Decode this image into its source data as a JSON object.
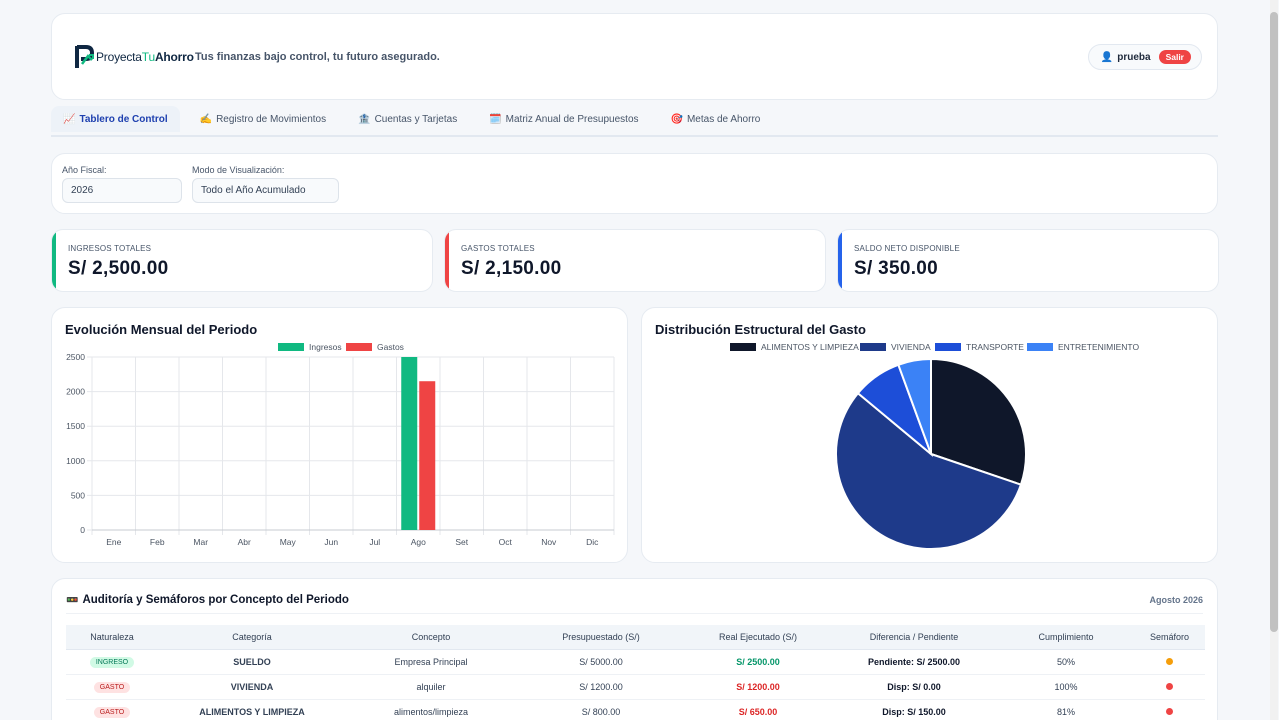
{
  "header": {
    "logo_parts": [
      "Proyecta",
      "Tu",
      "Ahorro"
    ],
    "tagline": "Tus finanzas bajo control, tu futuro asegurado.",
    "user_name": "prueba",
    "logout_label": "Salir"
  },
  "tabs": [
    {
      "icon": "📈",
      "label": "Tablero de Control",
      "active": true
    },
    {
      "icon": "✍️",
      "label": "Registro de Movimientos",
      "active": false
    },
    {
      "icon": "🏦",
      "label": "Cuentas y Tarjetas",
      "active": false
    },
    {
      "icon": "🗓️",
      "label": "Matriz Anual de Presupuestos",
      "active": false
    },
    {
      "icon": "🎯",
      "label": "Metas de Ahorro",
      "active": false
    }
  ],
  "filters": {
    "year_label": "Año Fiscal:",
    "year_value": "2026",
    "mode_label": "Modo de Visualización:",
    "mode_value": "Todo el Año Acumulado"
  },
  "kpis": [
    {
      "label": "INGRESOS TOTALES",
      "value": "S/ 2,500.00",
      "color": "#10b981"
    },
    {
      "label": "GASTOS TOTALES",
      "value": "S/ 2,150.00",
      "color": "#ef4444"
    },
    {
      "label": "SALDO NETO DISPONIBLE",
      "value": "S/ 350.00",
      "color": "#2563eb"
    }
  ],
  "chart_data": [
    {
      "type": "bar",
      "title": "Evolución Mensual del Periodo",
      "categories": [
        "Ene",
        "Feb",
        "Mar",
        "Abr",
        "May",
        "Jun",
        "Jul",
        "Ago",
        "Set",
        "Oct",
        "Nov",
        "Dic"
      ],
      "series": [
        {
          "name": "Ingresos",
          "color": "#10b981",
          "values": [
            0,
            0,
            0,
            0,
            0,
            0,
            0,
            2500,
            0,
            0,
            0,
            0
          ]
        },
        {
          "name": "Gastos",
          "color": "#ef4444",
          "values": [
            0,
            0,
            0,
            0,
            0,
            0,
            0,
            2150,
            0,
            0,
            0,
            0
          ]
        }
      ],
      "ylim": [
        0,
        2500
      ],
      "yticks": [
        0,
        500,
        1000,
        1500,
        2000,
        2500
      ],
      "grid": true,
      "legend": "top-center"
    },
    {
      "type": "pie",
      "title": "Distribución Estructural del Gasto",
      "labels": [
        "ALIMENTOS Y LIMPIEZA",
        "VIVIENDA",
        "TRANSPORTE",
        "ENTRETENIMIENTO"
      ],
      "values": [
        650,
        1200,
        180,
        120
      ],
      "colors": [
        "#0f172a",
        "#1e3a8a",
        "#1d4ed8",
        "#3b82f6"
      ],
      "legend": "top-center"
    }
  ],
  "audit": {
    "title": "Auditoría y Semáforos por Concepto del Periodo",
    "period": "Agosto 2026",
    "columns": [
      "Naturaleza",
      "Categoría",
      "Concepto",
      "Presupuestado (S/)",
      "Real Ejecutado (S/)",
      "Diferencia / Pendiente",
      "Cumplimiento",
      "Semáforo"
    ],
    "rows": [
      {
        "nature": "INGRESO",
        "category": "SUELDO",
        "concept": "Empresa Principal",
        "budget": "S/ 5000.00",
        "actual": "S/ 2500.00",
        "diff": "Pendiente: S/ 2500.00",
        "pct": "50%",
        "light": "#f59e0b",
        "actual_color": "#059669"
      },
      {
        "nature": "GASTO",
        "category": "VIVIENDA",
        "concept": "alquiler",
        "budget": "S/ 1200.00",
        "actual": "S/ 1200.00",
        "diff": "Disp: S/ 0.00",
        "pct": "100%",
        "light": "#ef4444",
        "actual_color": "#dc2626"
      },
      {
        "nature": "GASTO",
        "category": "ALIMENTOS Y LIMPIEZA",
        "concept": "alimentos/limpieza",
        "budget": "S/ 800.00",
        "actual": "S/ 650.00",
        "diff": "Disp: S/ 150.00",
        "pct": "81%",
        "light": "#ef4444",
        "actual_color": "#dc2626"
      }
    ]
  }
}
